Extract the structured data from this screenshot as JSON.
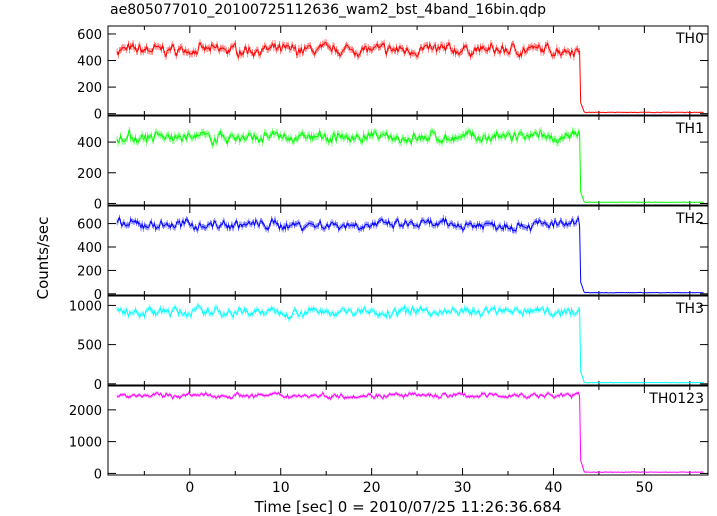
{
  "title": "ae805077010_20100725112636_wam2_bst_4band_16bin.qdp",
  "chart_data": {
    "type": "line",
    "title": "ae805077010_20100725112636_wam2_bst_4band_16bin.qdp",
    "xlabel": "Time [sec] 0 = 2010/07/25 11:26:36.684",
    "ylabel": "Counts/sec",
    "xlim": [
      -9,
      57
    ],
    "xticks": [
      0,
      10,
      20,
      30,
      40,
      50
    ],
    "drop_time": 43,
    "panels": [
      {
        "name": "TH0",
        "color": "#ff0000",
        "ylim": [
          -10,
          660
        ],
        "yticks": [
          0,
          200,
          400,
          600
        ],
        "level": 480,
        "noise": 45,
        "post": 10
      },
      {
        "name": "TH1",
        "color": "#00ff00",
        "ylim": [
          -10,
          570
        ],
        "yticks": [
          0,
          200,
          400
        ],
        "level": 430,
        "noise": 40,
        "post": 8
      },
      {
        "name": "TH2",
        "color": "#0000ff",
        "ylim": [
          -10,
          750
        ],
        "yticks": [
          0,
          200,
          400,
          600
        ],
        "level": 590,
        "noise": 45,
        "post": 10
      },
      {
        "name": "TH3",
        "color": "#00ffff",
        "ylim": [
          -15,
          1120
        ],
        "yticks": [
          0,
          500,
          1000
        ],
        "level": 920,
        "noise": 60,
        "post": 15
      },
      {
        "name": "TH0123",
        "color": "#ff00ff",
        "ylim": [
          -50,
          2750
        ],
        "yticks": [
          0,
          1000,
          2000
        ],
        "level": 2450,
        "noise": 90,
        "post": 40
      }
    ]
  }
}
